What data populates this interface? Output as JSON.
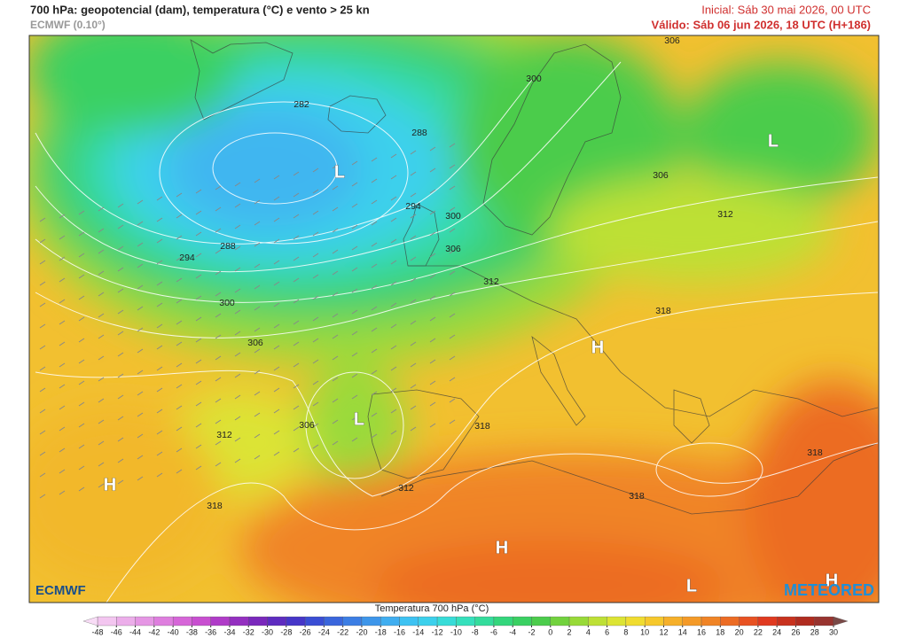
{
  "header": {
    "title": "700 hPa: geopotencial (dam), temperatura (°C) e vento > 25 kn",
    "model": "ECMWF (0.10°)",
    "initial": "Inicial: Sáb 30 mai 2026, 00 UTC",
    "valid": "Válido: Sáb 06 jun 2026, 18 UTC (H+186)"
  },
  "contour_labels": [
    282,
    288,
    294,
    300,
    306,
    312,
    288,
    294,
    300,
    306,
    318,
    312,
    306,
    306,
    300,
    306,
    312,
    318,
    312,
    318,
    318,
    318
  ],
  "pressure_centers": [
    "L",
    "L",
    "H",
    "L",
    "H",
    "H",
    "L",
    "H"
  ],
  "logos": {
    "left": "ECMWF",
    "right": "METEORED"
  },
  "colorbar": {
    "title": "Temperatura 700 hPa (°C)",
    "ticks": [
      -48,
      -46,
      -44,
      -42,
      -40,
      -38,
      -36,
      -34,
      -32,
      -30,
      -28,
      -26,
      -24,
      -22,
      -20,
      -18,
      -16,
      -14,
      -12,
      -10,
      -8,
      -6,
      -4,
      -2,
      0,
      2,
      4,
      6,
      8,
      10,
      12,
      14,
      16,
      18,
      20,
      22,
      24,
      26,
      28,
      30
    ],
    "colors": [
      "#f3c6f0",
      "#ecaeea",
      "#e596e4",
      "#de7ede",
      "#d666d8",
      "#c84fd0",
      "#b03cc8",
      "#9430c0",
      "#7a28bc",
      "#5e2cc0",
      "#4636c8",
      "#3a4ed4",
      "#3a66dc",
      "#3c7ee4",
      "#3e96ea",
      "#40aef0",
      "#3ec2f2",
      "#3cd0ec",
      "#38dcd8",
      "#36e0bc",
      "#34dc9c",
      "#34d67c",
      "#3ad062",
      "#4ccc4c",
      "#72d23e",
      "#98da38",
      "#bde036",
      "#dce434",
      "#f0dc30",
      "#f6c82c",
      "#f6b02a",
      "#f49a28",
      "#f08426",
      "#ec6c24",
      "#e85222",
      "#e03a20",
      "#c8321e",
      "#b02c20",
      "#983430"
    ],
    "extend_colors": [
      "#f8dcf6",
      "#7a4a48"
    ]
  }
}
